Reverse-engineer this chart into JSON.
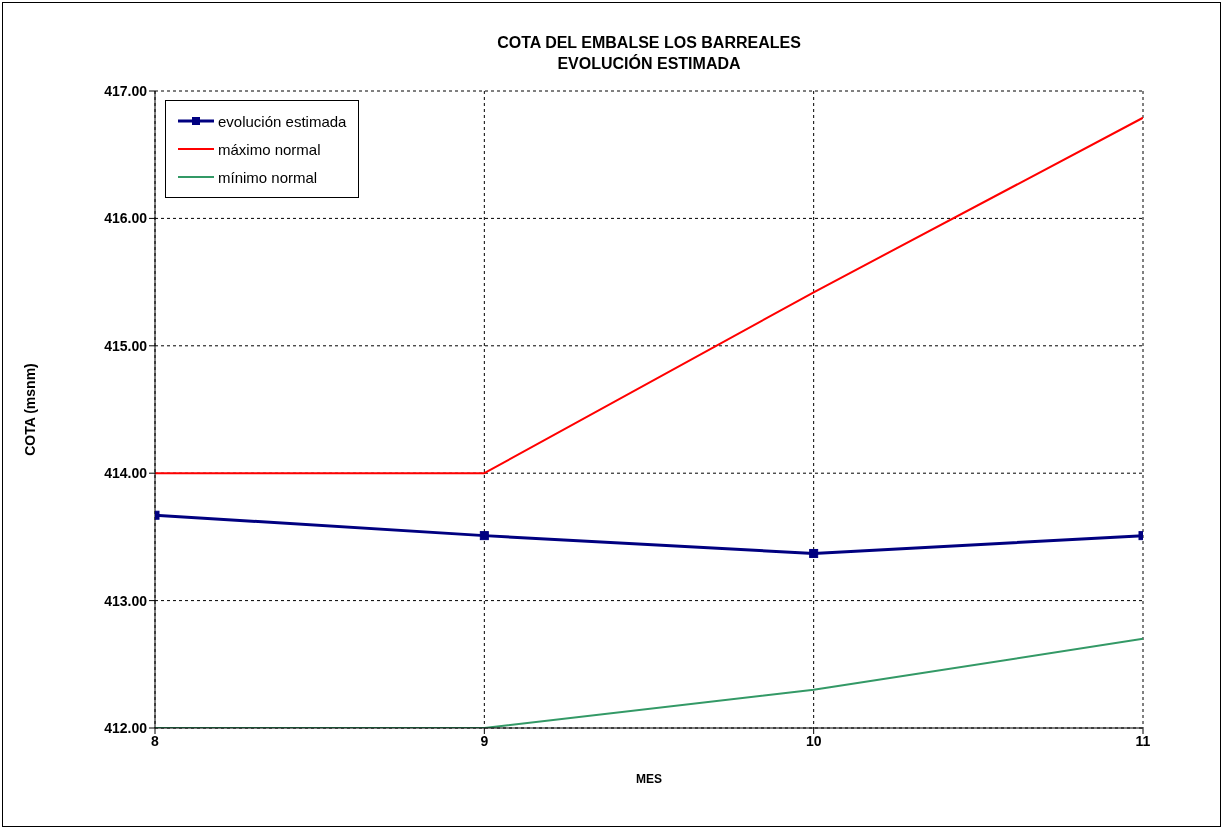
{
  "chart_data": {
    "type": "line",
    "title": "COTA DEL EMBALSE LOS BARREALES",
    "subtitle": "EVOLUCIÓN ESTIMADA",
    "xlabel": "MES",
    "ylabel": "COTA (msnm)",
    "x": [
      8,
      9,
      10,
      11
    ],
    "series": [
      {
        "name": "evolución estimada",
        "color": "#000080",
        "values": [
          413.67,
          413.51,
          413.37,
          413.51
        ],
        "marker": "square"
      },
      {
        "name": "máximo normal",
        "color": "#ff0000",
        "values": [
          414.0,
          414.0,
          415.42,
          416.79
        ],
        "marker": "none"
      },
      {
        "name": "mínimo normal",
        "color": "#339966",
        "values": [
          412.0,
          412.0,
          412.3,
          412.7
        ],
        "marker": "none"
      }
    ],
    "xlim": [
      8,
      11
    ],
    "xticks": [
      8,
      9,
      10,
      11
    ],
    "ylim": [
      412,
      417
    ],
    "yticks": [
      {
        "value": 412,
        "label": "412.00"
      },
      {
        "value": 413,
        "label": "413.00"
      },
      {
        "value": 414,
        "label": "414.00"
      },
      {
        "value": 415,
        "label": "415.00"
      },
      {
        "value": 416,
        "label": "416.00"
      },
      {
        "value": 417,
        "label": "417.00"
      }
    ],
    "grid": true,
    "legend": "top left",
    "line_style": "solid"
  }
}
